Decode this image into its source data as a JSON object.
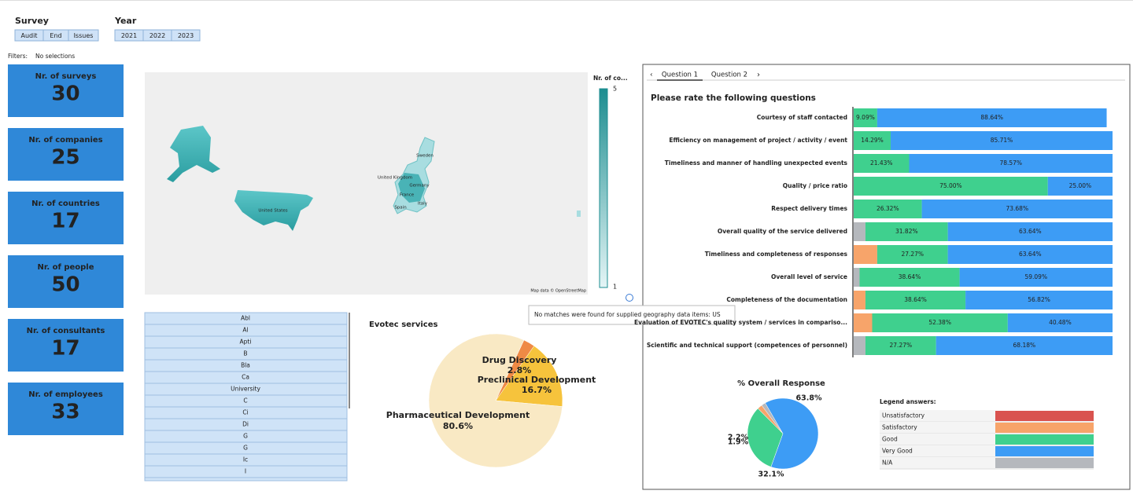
{
  "filters": {
    "survey": {
      "title": "Survey",
      "options": [
        "Audit",
        "End",
        "Issues"
      ]
    },
    "year": {
      "title": "Year",
      "options": [
        "2021",
        "2022",
        "2023"
      ]
    },
    "label": "Filters:",
    "value": "No selections"
  },
  "kpis": [
    {
      "label": "Nr. of surveys",
      "value": 30
    },
    {
      "label": "Nr. of companies",
      "value": 25
    },
    {
      "label": "Nr. of countries",
      "value": 17
    },
    {
      "label": "Nr. of people",
      "value": 50
    },
    {
      "label": "Nr. of consultants",
      "value": 17
    },
    {
      "label": "Nr. of employees",
      "value": 33
    }
  ],
  "map": {
    "legend_title": "Nr. of co...",
    "legend_max": 5,
    "legend_min": 1,
    "labels": [
      "United States",
      "Sweden",
      "United Kingdom",
      "Germany",
      "France",
      "Italy",
      "Spain"
    ],
    "credit": "Map data © OpenStreetMap",
    "tooltip": "No matches were found for supplied geography data items: US"
  },
  "list": {
    "items": [
      "Abl",
      "Al",
      "Apti",
      "B",
      "Bla",
      "Ca",
      "University",
      "C",
      "Ci",
      "Di",
      "G",
      "G",
      "Ic",
      "I"
    ]
  },
  "services_chart": {
    "type": "pie",
    "title": "Evotec services",
    "categories": [
      "Pharmaceutical Development",
      "Preclinical Development",
      "Drug Discovery"
    ],
    "values": [
      80.6,
      16.7,
      2.8
    ],
    "value_labels": [
      "80.6%",
      "16.7%",
      "2.8%"
    ],
    "colors": [
      "#f9e9c4",
      "#f6c33c",
      "#ef8a45"
    ]
  },
  "tabs": [
    "Question 1",
    "Question 2"
  ],
  "rating_chart": {
    "type": "stacked_bar",
    "title": "Please rate the following questions",
    "categories": [
      "Courtesy of staff contacted",
      "Efficiency on management of project / activity / event",
      "Timeliness and manner of handling unexpected events",
      "Quality / price ratio",
      "Respect delivery times",
      "Overall quality of the service delivered",
      "Timeliness and completeness of responses",
      "Overall level of service",
      "Completeness of the documentation",
      "Evaluation of EVOTEC's quality system / services in compariso...",
      "Scientific and technical support (competences of personnel)"
    ],
    "xlim": [
      0,
      100
    ],
    "series": [
      {
        "name": "Unsatisfactory",
        "color": "#d9534f",
        "values": [
          null,
          null,
          null,
          null,
          null,
          null,
          null,
          null,
          null,
          null,
          null
        ],
        "value_labels": [
          null,
          null,
          null,
          null,
          null,
          null,
          null,
          null,
          null,
          null,
          null
        ]
      },
      {
        "name": "Satisfactory",
        "color": "#f7a46a",
        "values": [
          null,
          null,
          null,
          null,
          null,
          null,
          9.09,
          null,
          4.55,
          7.14,
          null
        ],
        "value_labels": [
          null,
          null,
          null,
          null,
          null,
          null,
          null,
          null,
          null,
          null,
          null
        ]
      },
      {
        "name": "Good",
        "color": "#3fd08e",
        "values": [
          9.09,
          14.29,
          21.43,
          75.0,
          26.32,
          31.82,
          27.27,
          38.64,
          38.64,
          52.38,
          27.27
        ],
        "value_labels": [
          "9.09%",
          "14.29%",
          "21.43%",
          "75.00%",
          "26.32%",
          "31.82%",
          "27.27%",
          "38.64%",
          "38.64%",
          "52.38%",
          "27.27%"
        ]
      },
      {
        "name": "Very Good",
        "color": "#3d9cf5",
        "values": [
          88.64,
          85.71,
          78.57,
          25.0,
          73.68,
          63.64,
          63.64,
          59.09,
          56.82,
          40.48,
          68.18
        ],
        "value_labels": [
          "88.64%",
          "85.71%",
          "78.57%",
          "25.00%",
          "73.68%",
          "63.64%",
          "63.64%",
          "59.09%",
          "56.82%",
          "40.48%",
          "68.18%"
        ]
      },
      {
        "name": "N/A",
        "color": "#b5b8bd",
        "values": [
          null,
          null,
          null,
          null,
          null,
          4.55,
          null,
          2.27,
          null,
          null,
          4.55
        ],
        "value_labels": [
          null,
          null,
          null,
          null,
          null,
          null,
          null,
          null,
          null,
          null,
          null
        ]
      }
    ]
  },
  "response_chart": {
    "type": "pie",
    "title": "% Overall Response",
    "values": [
      63.8,
      32.1,
      2.2,
      1.9
    ],
    "value_labels": [
      "63.8%",
      "32.1%",
      "2.2%",
      "1.9%"
    ],
    "colors": [
      "#3d9cf5",
      "#3fd08e",
      "#f7a46a",
      "#b5b8bd"
    ]
  },
  "legend": {
    "title": "Legend answers:"
  }
}
